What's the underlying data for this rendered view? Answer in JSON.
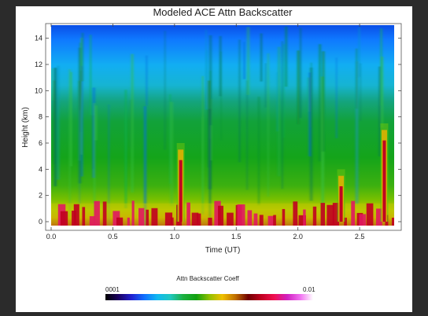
{
  "chart_data": {
    "type": "heatmap",
    "title": "Modeled ACE Attn Backscatter",
    "xlabel": "Time (UT)",
    "ylabel": "Height (km)",
    "xlim": [
      0.0,
      2.78
    ],
    "ylim": [
      -0.3,
      15.0
    ],
    "xticks": [
      "0.0",
      "0.5",
      "1.0",
      "1.5",
      "2.0",
      "2.5"
    ],
    "xtick_values": [
      0.0,
      0.5,
      1.0,
      1.5,
      2.0,
      2.5
    ],
    "yticks": [
      "0",
      "2",
      "4",
      "6",
      "8",
      "10",
      "12",
      "14"
    ],
    "ytick_values": [
      0,
      2,
      4,
      6,
      8,
      10,
      12,
      14
    ],
    "colorbar": {
      "title": "Attn Backscatter Coeff",
      "min_label": "0001",
      "max_label": "0.01",
      "scale": "log",
      "colors": [
        "#000000",
        "#1a0060",
        "#2020d0",
        "#1070ff",
        "#10b8f0",
        "#20c8c0",
        "#1cb040",
        "#10a010",
        "#90c000",
        "#f0c000",
        "#c07000",
        "#700000",
        "#c00020",
        "#f01050",
        "#d020c0",
        "#f070f0",
        "#ffffff"
      ]
    },
    "features": [
      {
        "time": 1.05,
        "top_km": 5.5
      },
      {
        "time": 2.35,
        "top_km": 3.5
      },
      {
        "time": 2.7,
        "top_km": 7.0
      }
    ]
  }
}
